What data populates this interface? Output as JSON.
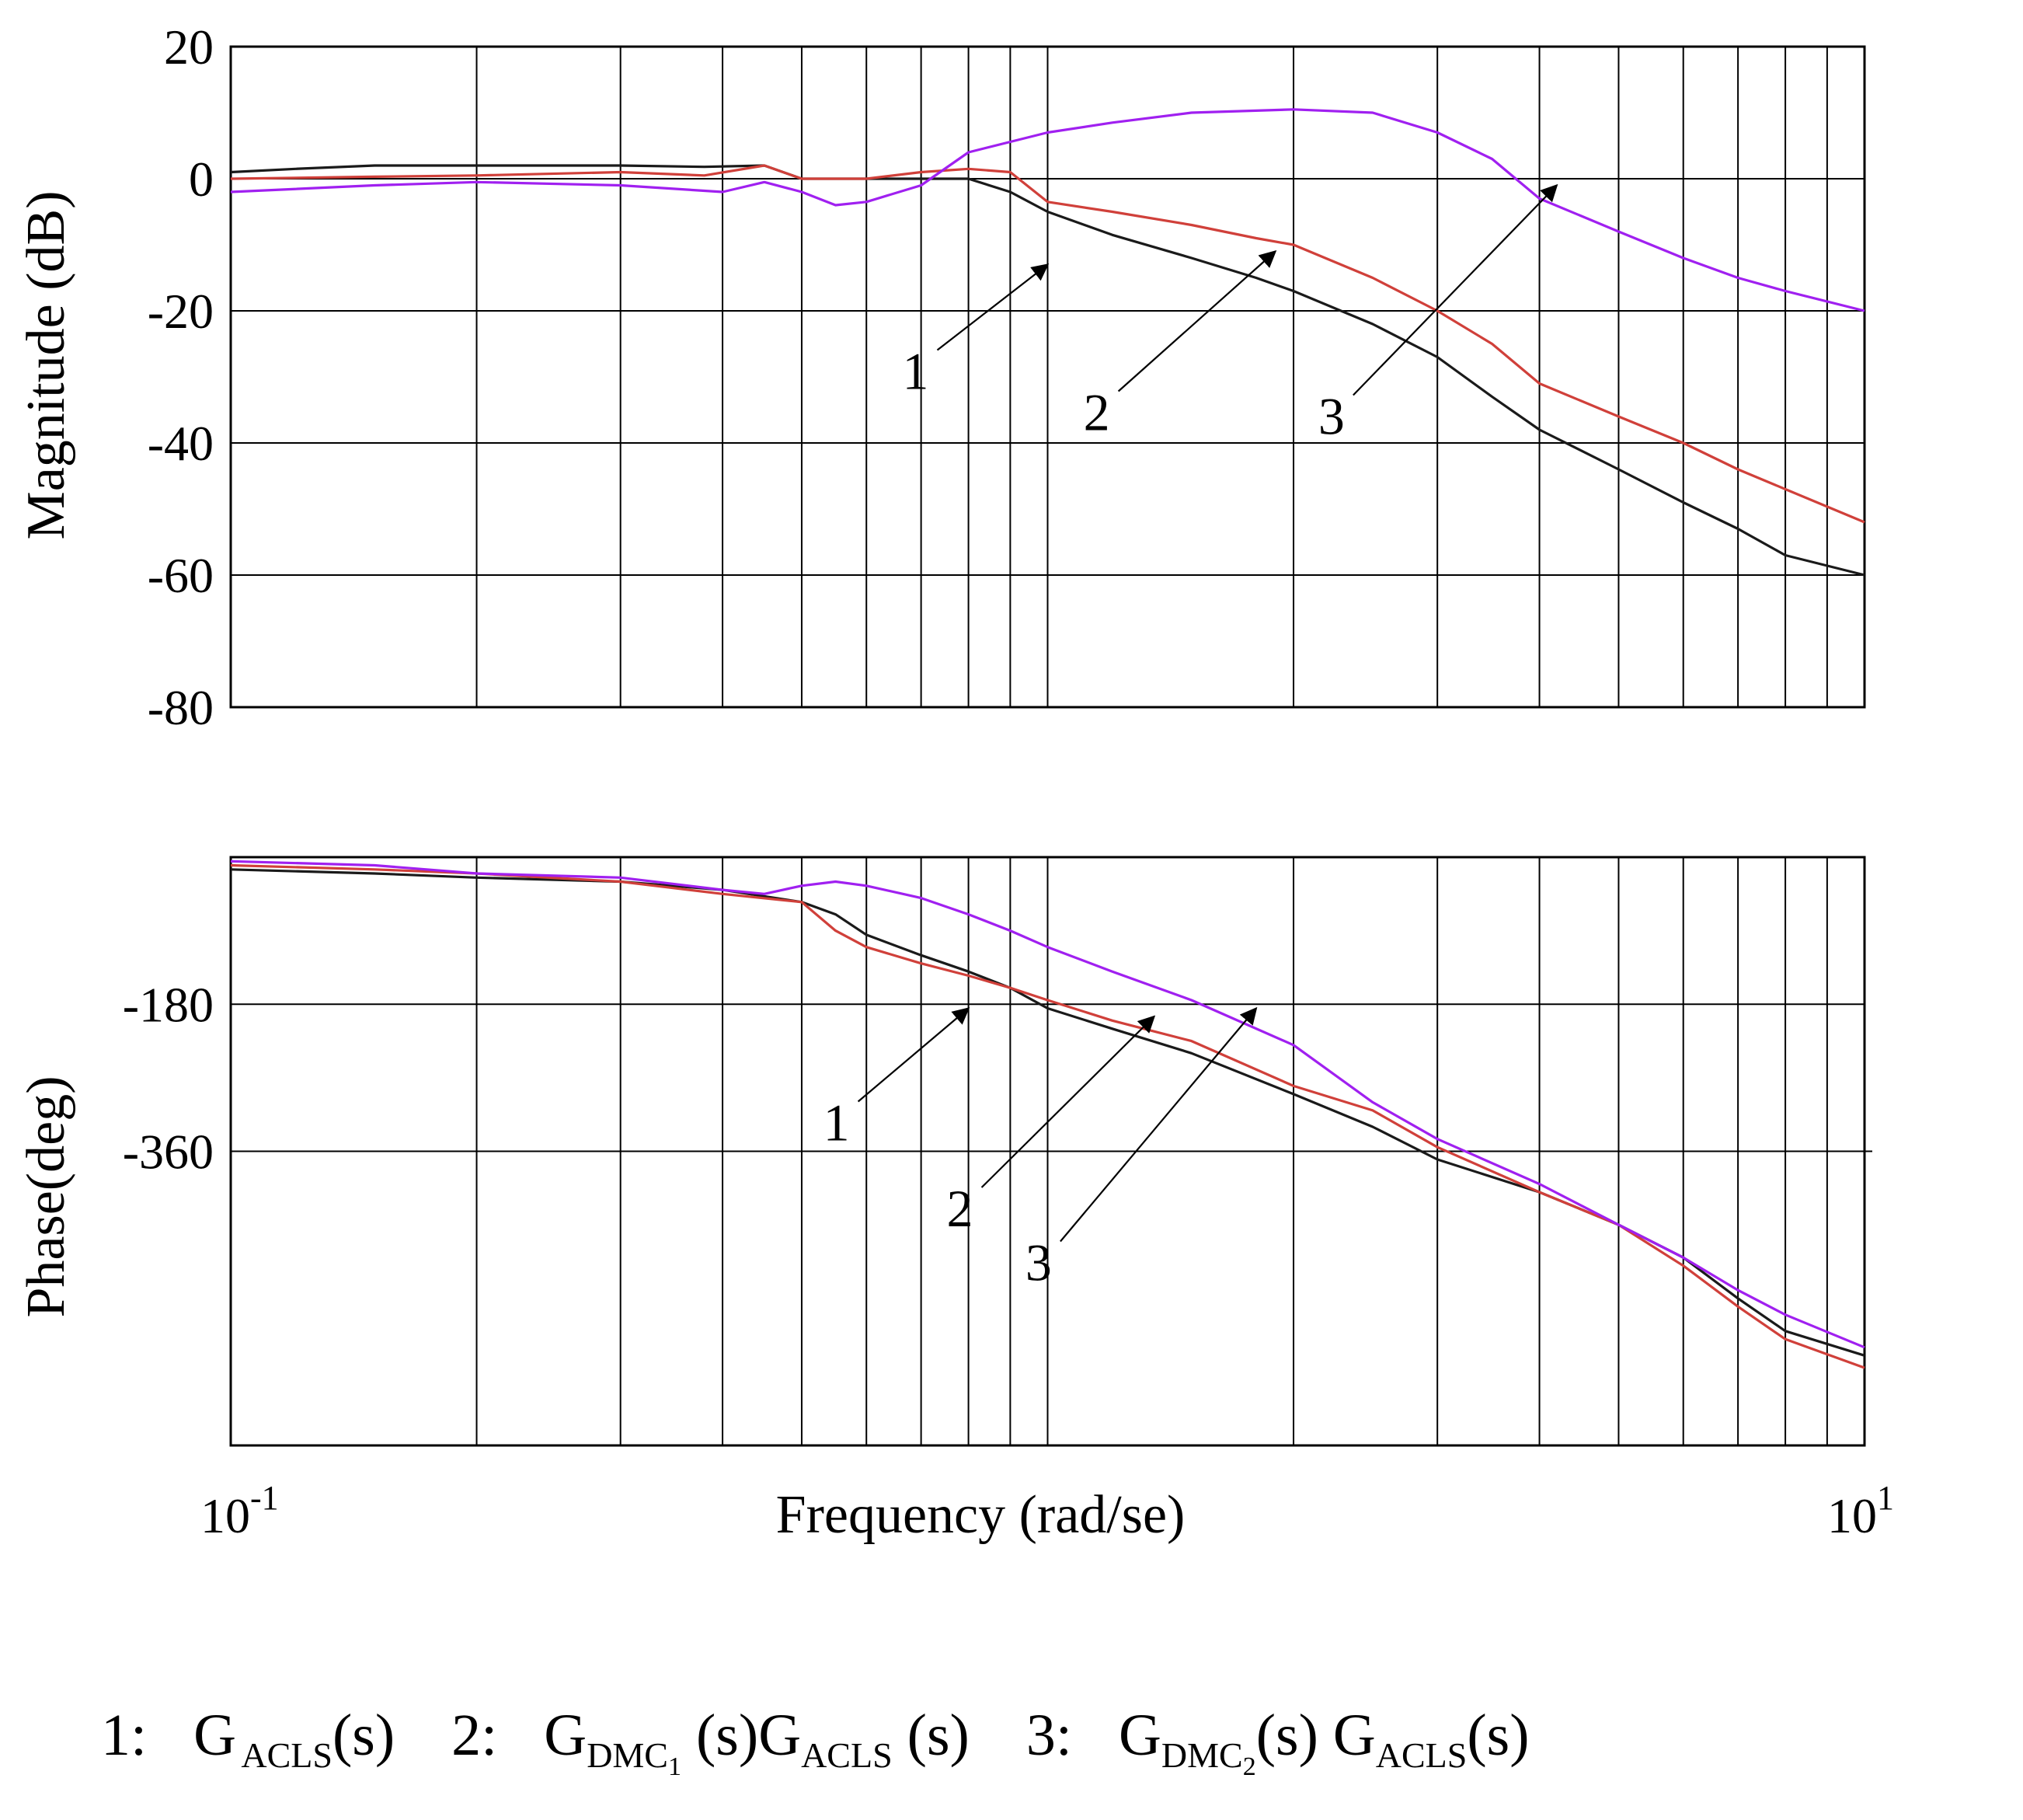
{
  "colors": {
    "curve1": "#1a1a1a",
    "curve2": "#d0403a",
    "curve3": "#a020f0",
    "grid": "#000000"
  },
  "chart_data": [
    {
      "type": "line",
      "title": "",
      "xlabel": "",
      "ylabel": "Magnitude (dB)",
      "xscale": "log",
      "xlim": [
        0.1,
        10
      ],
      "ylim": [
        -80,
        20
      ],
      "yticks": [
        20,
        0,
        -20,
        -40,
        -60,
        -80
      ],
      "ytick_labels": [
        "20",
        "0",
        "-20",
        "-40",
        "-60",
        "-80"
      ],
      "grid": true,
      "series": [
        {
          "name": "1",
          "x": [
            0.1,
            0.12,
            0.15,
            0.2,
            0.3,
            0.38,
            0.45,
            0.5,
            0.6,
            0.7,
            0.8,
            0.9,
            1.0,
            1.2,
            1.5,
            1.8,
            2.0,
            2.5,
            3.0,
            3.5,
            4.0,
            5.0,
            6.0,
            7.0,
            8.0,
            10.0
          ],
          "y": [
            1,
            1.5,
            2,
            2,
            2,
            1.8,
            2,
            0,
            0,
            0,
            0,
            -2,
            -5,
            -8.5,
            -12,
            -15,
            -17,
            -22,
            -27,
            -33,
            -38,
            -44,
            -49,
            -53,
            -57,
            -60
          ]
        },
        {
          "name": "2",
          "x": [
            0.1,
            0.15,
            0.2,
            0.3,
            0.38,
            0.45,
            0.5,
            0.6,
            0.7,
            0.8,
            0.9,
            1.0,
            1.2,
            1.5,
            1.8,
            2.0,
            2.5,
            3.0,
            3.5,
            4.0,
            5.0,
            6.0,
            7.0,
            8.0,
            10.0
          ],
          "y": [
            0,
            0.3,
            0.5,
            1,
            0.5,
            2,
            0,
            0,
            1,
            1.5,
            1,
            -3.5,
            -5,
            -7,
            -9,
            -10,
            -15,
            -20,
            -25,
            -31,
            -36,
            -40,
            -44,
            -47,
            -52
          ]
        },
        {
          "name": "3",
          "x": [
            0.1,
            0.15,
            0.2,
            0.3,
            0.4,
            0.45,
            0.5,
            0.55,
            0.6,
            0.7,
            0.8,
            1.0,
            1.2,
            1.5,
            2.0,
            2.5,
            3.0,
            3.5,
            4.0,
            5.0,
            6.0,
            7.0,
            8.0,
            10.0
          ],
          "y": [
            -2,
            -1,
            -0.5,
            -1,
            -2,
            -0.5,
            -2,
            -4,
            -3.5,
            -1,
            4,
            7,
            8.5,
            10,
            10.5,
            10,
            7,
            3,
            -3,
            -8,
            -12,
            -15,
            -17,
            -20
          ]
        }
      ],
      "annotations": [
        {
          "label": "1",
          "target": [
            1.0,
            -13
          ]
        },
        {
          "label": "2",
          "target": [
            1.9,
            -11
          ]
        },
        {
          "label": "3",
          "target": [
            4.2,
            -1
          ]
        }
      ]
    },
    {
      "type": "line",
      "title": "",
      "xlabel": "Frequency (rad/se)",
      "ylabel": "Phase(deg)",
      "xscale": "log",
      "xlim": [
        0.1,
        10
      ],
      "ylim": [
        -720,
        0
      ],
      "yticks": [
        -180,
        -360
      ],
      "ytick_labels": [
        "-180",
        "-360"
      ],
      "xtick_labels": [
        {
          "base": "10",
          "exp": "-1"
        },
        {
          "base": "10",
          "exp": "1"
        }
      ],
      "grid": true,
      "series": [
        {
          "name": "1",
          "x": [
            0.1,
            0.15,
            0.2,
            0.3,
            0.4,
            0.5,
            0.55,
            0.6,
            0.7,
            0.8,
            0.9,
            1.0,
            1.2,
            1.5,
            2.0,
            2.5,
            3.0,
            4.0,
            5.0,
            6.0,
            7.0,
            8.0,
            10.0
          ],
          "y": [
            -15,
            -20,
            -25,
            -30,
            -40,
            -55,
            -70,
            -95,
            -120,
            -140,
            -160,
            -185,
            -210,
            -240,
            -290,
            -330,
            -370,
            -410,
            -450,
            -490,
            -540,
            -580,
            -610
          ]
        },
        {
          "name": "2",
          "x": [
            0.1,
            0.15,
            0.2,
            0.3,
            0.4,
            0.5,
            0.55,
            0.6,
            0.7,
            0.8,
            0.9,
            1.0,
            1.2,
            1.5,
            2.0,
            2.5,
            3.0,
            4.0,
            5.0,
            6.0,
            7.0,
            8.0,
            10.0
          ],
          "y": [
            -10,
            -15,
            -20,
            -30,
            -45,
            -55,
            -90,
            -110,
            -130,
            -145,
            -160,
            -175,
            -200,
            -225,
            -280,
            -310,
            -355,
            -410,
            -450,
            -500,
            -550,
            -590,
            -625
          ]
        },
        {
          "name": "3",
          "x": [
            0.1,
            0.15,
            0.2,
            0.3,
            0.4,
            0.45,
            0.5,
            0.55,
            0.6,
            0.7,
            0.8,
            0.9,
            1.0,
            1.2,
            1.5,
            2.0,
            2.5,
            3.0,
            4.0,
            5.0,
            6.0,
            7.0,
            8.0,
            10.0
          ],
          "y": [
            -5,
            -10,
            -20,
            -25,
            -40,
            -45,
            -35,
            -30,
            -35,
            -50,
            -70,
            -90,
            -110,
            -140,
            -175,
            -230,
            -300,
            -345,
            -400,
            -450,
            -490,
            -530,
            -560,
            -600
          ]
        }
      ],
      "annotations": [
        {
          "label": "1",
          "target": [
            0.8,
            -185
          ]
        },
        {
          "label": "2",
          "target": [
            1.35,
            -195
          ]
        },
        {
          "label": "3",
          "target": [
            1.8,
            -185
          ]
        }
      ]
    }
  ],
  "legend": {
    "item1": {
      "num": "1:",
      "expr": "G",
      "sub": "ACLS",
      "tail": "(s)"
    },
    "item2": {
      "num": "2:",
      "g1": "G",
      "sub1": "DMC",
      "sub1b": "1",
      "mid": " (s)G",
      "sub2": "ACLS",
      "tail": " (s)"
    },
    "item3": {
      "num": "3:",
      "g1": "G",
      "sub1": "DMC",
      "sub1b": "2",
      "mid": "(s) G",
      "sub2": "ACLS",
      "tail": "(s)"
    }
  }
}
